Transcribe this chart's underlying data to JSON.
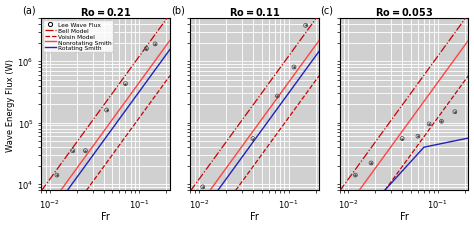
{
  "titles": [
    "Ro = 0.21",
    "Ro = 0.11",
    "Ro = 0.053"
  ],
  "panel_labels": [
    "(a)",
    "(b)",
    "(c)"
  ],
  "xlabel": "Fr",
  "ylabel": "Wave Energy Flux (W)",
  "xlim": [
    0.008,
    0.22
  ],
  "ylim": [
    8000,
    5000000
  ],
  "legend_labels": [
    "Lee Wave Flux",
    "Bell Model",
    "Voisin Model",
    "Nonrotating Smith",
    "Rotating Smith"
  ],
  "background_color": "#d0d0d0",
  "grid_color": "#ffffff",
  "scatter_a": {
    "x": [
      0.012,
      0.018,
      0.025,
      0.043,
      0.07,
      0.12,
      0.15
    ],
    "y": [
      14000,
      35000,
      35000,
      160000,
      430000,
      1600000,
      1900000
    ]
  },
  "scatter_b": {
    "x": [
      0.011,
      0.04,
      0.075,
      0.115,
      0.155
    ],
    "y": [
      9000,
      55000,
      270000,
      800000,
      3800000
    ]
  },
  "scatter_c": {
    "x": [
      0.012,
      0.018,
      0.04,
      0.06,
      0.08,
      0.11,
      0.155
    ],
    "y": [
      14000,
      22000,
      55000,
      60000,
      95000,
      105000,
      150000
    ]
  },
  "bell_slope": 2.0,
  "bell_a_intercept": 150000000.0,
  "nonrot_smith_slope": 2.0,
  "nonrot_smith_a_intercept": 60000000.0,
  "voisin_slope": 2.0,
  "voisin_a_intercept": 18000000.0,
  "rot_smith_ab_slope": 2.0,
  "bell_color": "#cc0000",
  "bell_linestyle": "-.",
  "voisin_color": "#cc0000",
  "voisin_linestyle": "--",
  "nonrot_color": "#ff4444",
  "nonrot_linestyle": "-",
  "rot_color": "#2222bb",
  "rot_linestyle": "-",
  "scatter_color": "#444444",
  "scatter_marker": "o",
  "scatter_size": 8
}
